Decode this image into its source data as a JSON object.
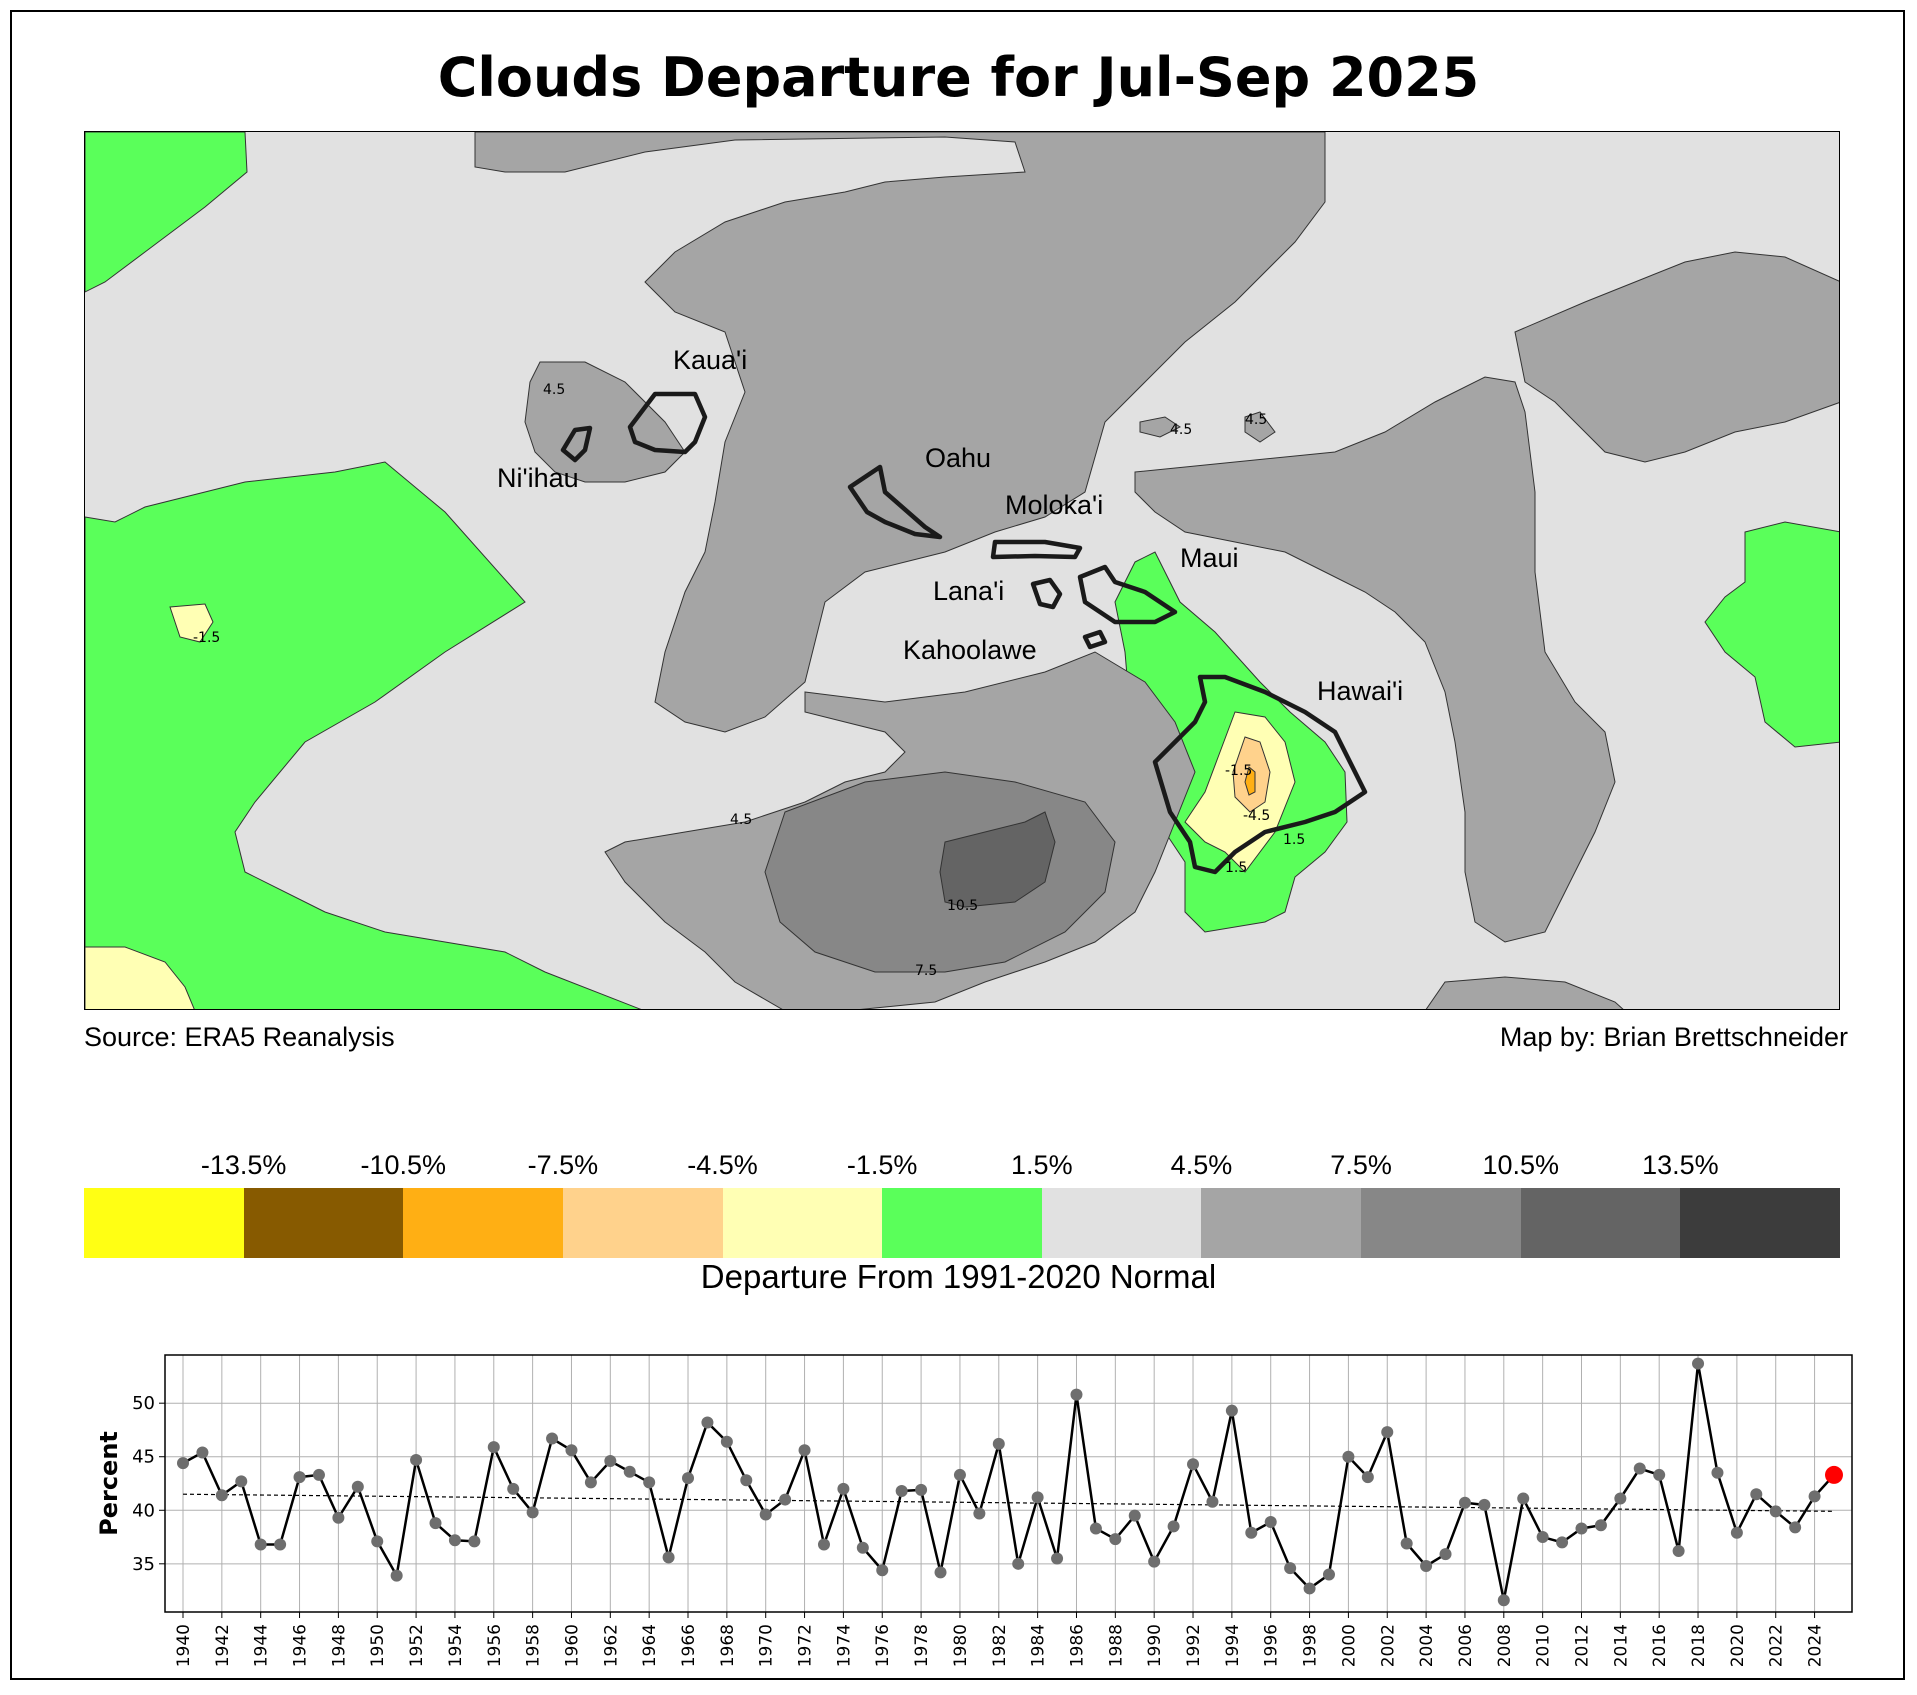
{
  "title": "Clouds Departure for Jul-Sep 2025",
  "source_text": "Source: ERA5 Reanalysis",
  "credit_text": "Map by: Brian Brettschneider",
  "colorbar": {
    "title": "Departure From 1991-2020 Normal",
    "tick_labels": [
      "-13.5%",
      "-10.5%",
      "-7.5%",
      "-4.5%",
      "-1.5%",
      "1.5%",
      "4.5%",
      "7.5%",
      "10.5%",
      "13.5%"
    ],
    "colors": [
      "#ffff14",
      "#875a00",
      "#ffaf14",
      "#ffd28c",
      "#ffffb4",
      "#5aff5a",
      "#e1e1e1",
      "#a5a5a5",
      "#878787",
      "#646464",
      "#3c3c3c"
    ]
  },
  "map": {
    "island_labels": [
      "Kaua'i",
      "Ni'ihau",
      "Oahu",
      "Moloka'i",
      "Maui",
      "Lana'i",
      "Kahoolawe",
      "Hawai'i"
    ],
    "contour_labels": [
      "4.5",
      "4.5",
      "4.5",
      "-1.5",
      "4.5",
      "10.5",
      "7.5",
      "-1.5",
      "-4.5",
      "1.5",
      "1.5"
    ]
  },
  "chart_data": {
    "type": "line",
    "ylabel": "Percent",
    "xlabel": "",
    "x": [
      1940,
      1941,
      1942,
      1943,
      1944,
      1945,
      1946,
      1947,
      1948,
      1949,
      1950,
      1951,
      1952,
      1953,
      1954,
      1955,
      1956,
      1957,
      1958,
      1959,
      1960,
      1961,
      1962,
      1963,
      1964,
      1965,
      1966,
      1967,
      1968,
      1969,
      1970,
      1971,
      1972,
      1973,
      1974,
      1975,
      1976,
      1977,
      1978,
      1979,
      1980,
      1981,
      1982,
      1983,
      1984,
      1985,
      1986,
      1987,
      1988,
      1989,
      1990,
      1991,
      1992,
      1993,
      1994,
      1995,
      1996,
      1997,
      1998,
      1999,
      2000,
      2001,
      2002,
      2003,
      2004,
      2005,
      2006,
      2007,
      2008,
      2009,
      2010,
      2011,
      2012,
      2013,
      2014,
      2015,
      2016,
      2017,
      2018,
      2019,
      2020,
      2021,
      2022,
      2023,
      2024,
      2025
    ],
    "series": [
      {
        "values": [
          44.4,
          45.4,
          41.4,
          42.7,
          36.8,
          36.8,
          43.1,
          43.3,
          39.3,
          42.2,
          37.1,
          33.9,
          44.7,
          38.8,
          37.2,
          37.1,
          45.9,
          42.0,
          39.8,
          46.7,
          45.6,
          42.6,
          44.6,
          43.6,
          42.6,
          35.6,
          43.0,
          48.2,
          46.4,
          42.8,
          39.6,
          41.0,
          45.6,
          36.8,
          42.0,
          36.5,
          34.4,
          41.8,
          41.9,
          34.2,
          43.3,
          39.7,
          46.2,
          35.0,
          41.2,
          35.5,
          50.8,
          38.3,
          37.3,
          39.5,
          35.2,
          38.5,
          44.3,
          40.8,
          49.3,
          37.9,
          38.9,
          34.6,
          32.7,
          34.0,
          45.0,
          43.1,
          47.3,
          36.9,
          34.8,
          35.9,
          40.7,
          40.5,
          31.6,
          41.1,
          37.5,
          37.0,
          38.3,
          38.6,
          41.1,
          43.9,
          43.3,
          36.2,
          53.7,
          43.5,
          37.9,
          41.5,
          39.9,
          38.4,
          41.3,
          43.3
        ]
      }
    ],
    "trend": {
      "start": 41.5,
      "end": 39.9
    },
    "highlight": {
      "year": 2025,
      "color": "#ff0000"
    },
    "ylim": [
      30.5,
      54.5
    ],
    "yticks": [
      35,
      40,
      45,
      50
    ],
    "xticks_every": 2,
    "grid": true
  }
}
